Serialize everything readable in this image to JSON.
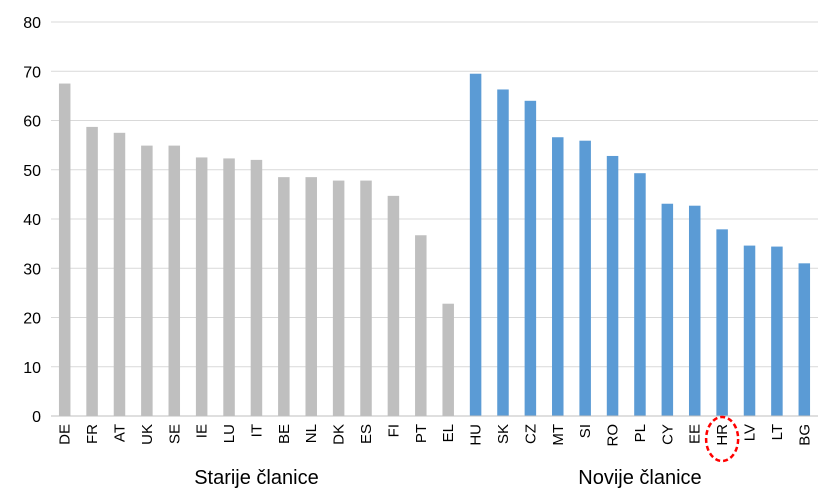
{
  "chart_data": {
    "type": "bar",
    "ylim": [
      0,
      80
    ],
    "yticks": [
      0,
      10,
      20,
      30,
      40,
      50,
      60,
      70,
      80
    ],
    "grid": true,
    "groups": [
      {
        "label": "Starije članice",
        "color": "#BFBFBF",
        "categories": [
          "DE",
          "FR",
          "AT",
          "UK",
          "SE",
          "IE",
          "LU",
          "IT",
          "BE",
          "NL",
          "DK",
          "ES",
          "FI",
          "PT",
          "EL"
        ],
        "values": [
          67.5,
          58.7,
          57.5,
          54.9,
          54.9,
          52.5,
          52.3,
          52.0,
          48.5,
          48.5,
          47.8,
          47.8,
          44.7,
          36.7,
          22.8
        ]
      },
      {
        "label": "Novije članice",
        "color": "#5B9BD5",
        "categories": [
          "HU",
          "SK",
          "CZ",
          "MT",
          "SI",
          "RO",
          "PL",
          "CY",
          "EE",
          "HR",
          "LV",
          "LT",
          "BG"
        ],
        "values": [
          69.5,
          66.3,
          64.0,
          56.6,
          55.9,
          52.8,
          49.3,
          43.1,
          42.7,
          37.9,
          34.6,
          34.4,
          31.0
        ]
      }
    ],
    "highlight": "HR",
    "highlight_color": "#FF0000"
  }
}
